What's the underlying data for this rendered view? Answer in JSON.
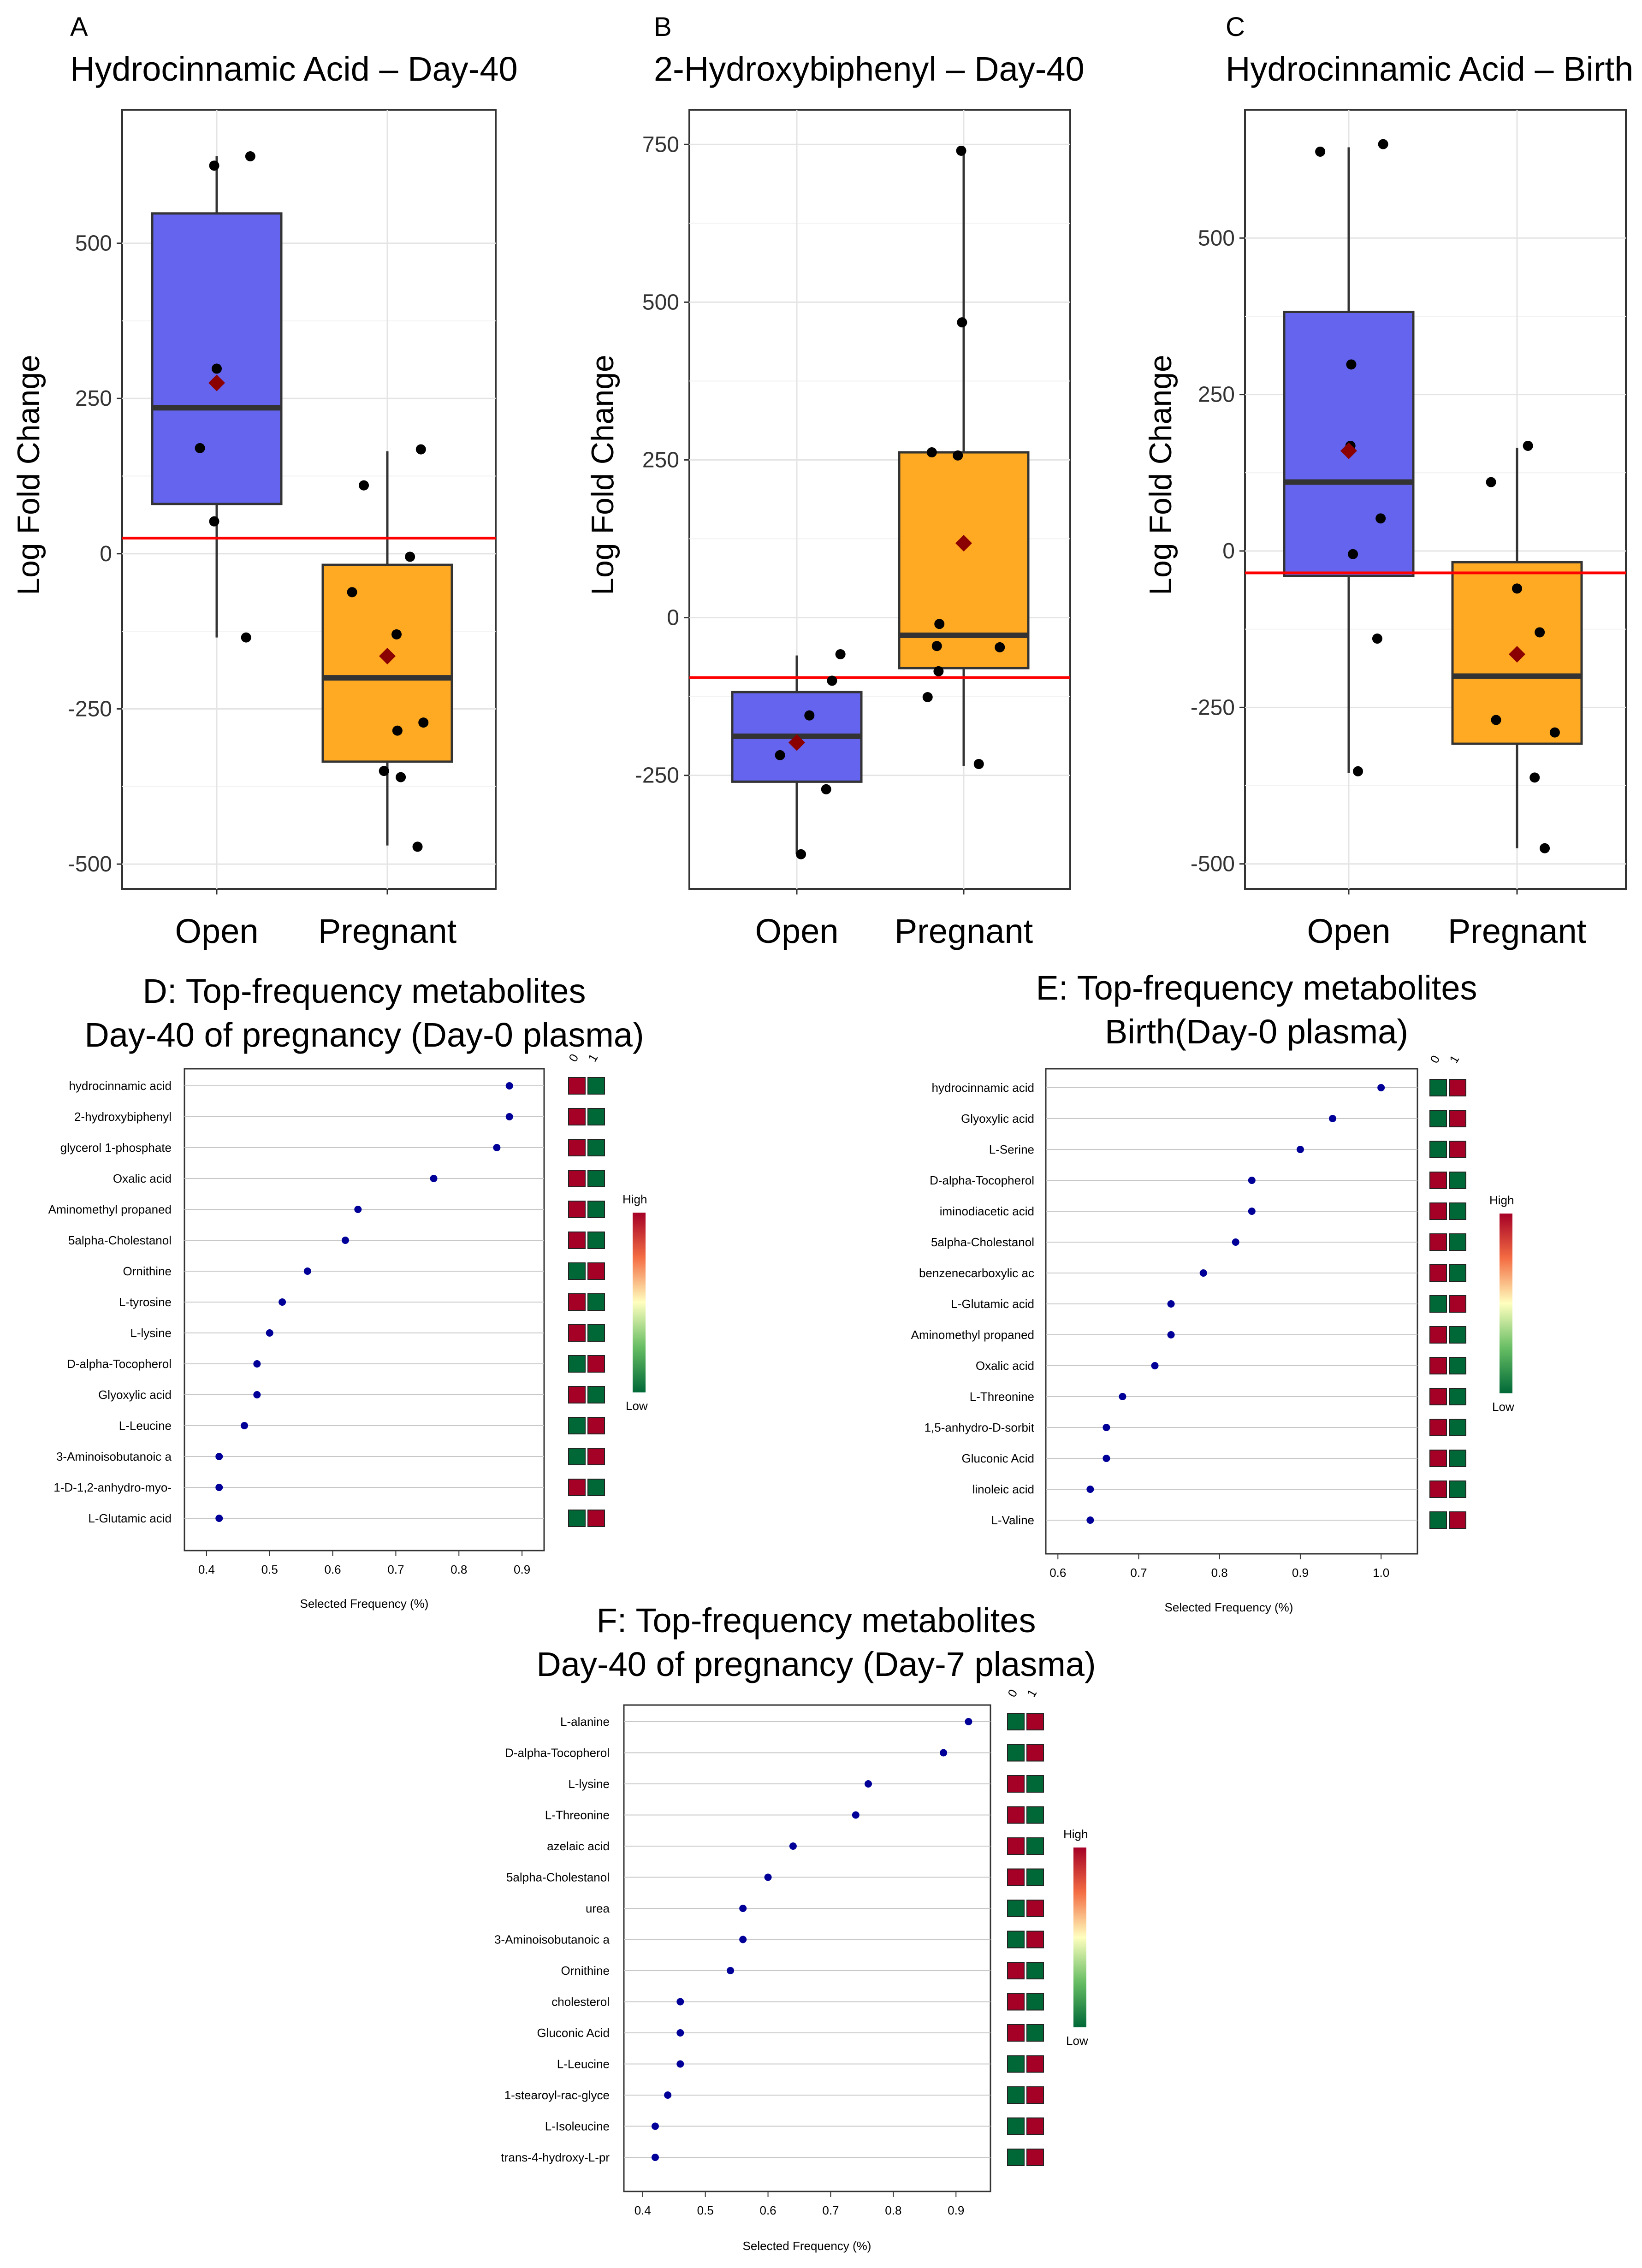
{
  "colors": {
    "open": "#6464EE",
    "pregnant": "#FFAA22",
    "mean": "#8B0000",
    "refline": "#FF0000",
    "dot": "#000099",
    "heat_high": "#A50026",
    "heat_low": "#006837"
  },
  "chart_data": [
    {
      "id": "A",
      "type": "box",
      "letter": "A",
      "title": "Hydrocinnamic Acid – Day-40",
      "ylabel": "Log Fold Change",
      "categories": [
        "Open",
        "Pregnant"
      ],
      "ylim": [
        -540,
        715
      ],
      "yticks": [
        -500,
        -250,
        0,
        250,
        500
      ],
      "ytick_labels": [
        "-500",
        "-250",
        "0",
        "250",
        "500"
      ],
      "refline": 25,
      "boxes": [
        {
          "q1": 80,
          "median": 235,
          "q3": 548,
          "lo": -135,
          "hi": 640,
          "mean": 275
        },
        {
          "q1": -335,
          "median": -200,
          "q3": -18,
          "lo": -470,
          "hi": 165,
          "mean": -165
        }
      ],
      "points": [
        [
          [
            0.97,
            625
          ],
          [
            1.4,
            640
          ],
          [
            0.8,
            170
          ],
          [
            1.0,
            298
          ],
          [
            0.97,
            52
          ],
          [
            1.35,
            -135
          ]
        ],
        [
          [
            0.72,
            110
          ],
          [
            0.58,
            -62
          ],
          [
            1.4,
            168
          ],
          [
            1.27,
            -5
          ],
          [
            1.11,
            -130
          ],
          [
            1.12,
            -285
          ],
          [
            1.43,
            -272
          ],
          [
            0.96,
            -350
          ],
          [
            1.16,
            -360
          ],
          [
            1.36,
            -472
          ]
        ]
      ]
    },
    {
      "id": "B",
      "type": "box",
      "letter": "B",
      "title": "2-Hydroxybiphenyl – Day-40",
      "ylabel": "Log Fold Change",
      "categories": [
        "Open",
        "Pregnant"
      ],
      "ylim": [
        -430,
        805
      ],
      "yticks": [
        -250,
        0,
        250,
        500,
        750
      ],
      "ytick_labels": [
        "-250",
        "0",
        "250",
        "500",
        "750"
      ],
      "refline": -95,
      "boxes": [
        {
          "q1": -260,
          "median": -188,
          "q3": -118,
          "lo": -375,
          "hi": -60,
          "mean": -198
        },
        {
          "q1": -80,
          "median": -28,
          "q3": 262,
          "lo": -235,
          "hi": 742,
          "mean": 118
        }
      ],
      "points": [
        [
          [
            0.8,
            -218
          ],
          [
            1.15,
            -155
          ],
          [
            1.35,
            -272
          ],
          [
            1.42,
            -100
          ],
          [
            1.52,
            -58
          ],
          [
            1.05,
            -375
          ]
        ],
        [
          [
            0.97,
            740
          ],
          [
            0.98,
            468
          ],
          [
            0.62,
            262
          ],
          [
            0.93,
            257
          ],
          [
            0.71,
            -10
          ],
          [
            0.68,
            -45
          ],
          [
            0.7,
            -85
          ],
          [
            0.57,
            -126
          ],
          [
            1.43,
            -47
          ],
          [
            1.18,
            -232
          ]
        ]
      ]
    },
    {
      "id": "C",
      "type": "box",
      "letter": "C",
      "title": "Hydrocinnamic Acid – Birth",
      "ylabel": "Log Fold Change",
      "categories": [
        "Open",
        "Pregnant"
      ],
      "ylim": [
        -540,
        705
      ],
      "yticks": [
        -500,
        -250,
        0,
        250,
        500
      ],
      "ytick_labels": [
        "-500",
        "-250",
        "0",
        "250",
        "500"
      ],
      "refline": -35,
      "boxes": [
        {
          "q1": -40,
          "median": 110,
          "q3": 382,
          "lo": -355,
          "hi": 645,
          "mean": 160
        },
        {
          "q1": -308,
          "median": -200,
          "q3": -18,
          "lo": -475,
          "hi": 165,
          "mean": -165
        }
      ],
      "points": [
        [
          [
            0.66,
            638
          ],
          [
            1.41,
            650
          ],
          [
            1.03,
            298
          ],
          [
            1.02,
            168
          ],
          [
            1.38,
            52
          ],
          [
            1.05,
            -5
          ],
          [
            1.34,
            -140
          ],
          [
            1.11,
            -352
          ]
        ],
        [
          [
            0.69,
            110
          ],
          [
            1.13,
            168
          ],
          [
            1.0,
            -60
          ],
          [
            1.27,
            -130
          ],
          [
            0.75,
            -270
          ],
          [
            1.45,
            -290
          ],
          [
            1.21,
            -362
          ],
          [
            1.33,
            -475
          ]
        ]
      ]
    },
    {
      "id": "D",
      "type": "dot-importance",
      "title_lines": [
        "D: Top-frequency metabolites",
        "Day-40 of pregnancy (Day-0 plasma)"
      ],
      "xlabel": "Selected Frequency (%)",
      "xlim": [
        0.365,
        0.935
      ],
      "xticks": [
        0.4,
        0.5,
        0.6,
        0.7,
        0.8,
        0.9
      ],
      "xtick_labels": [
        "0.4",
        "0.5",
        "0.6",
        "0.7",
        "0.8",
        "0.9"
      ],
      "heat_columns": [
        "0",
        "1"
      ],
      "legend_high": "High",
      "legend_low": "Low",
      "rows": [
        {
          "label": "hydrocinnamic acid",
          "value": 0.88,
          "heat": [
            1,
            0
          ]
        },
        {
          "label": "2-hydroxybiphenyl",
          "value": 0.88,
          "heat": [
            1,
            0
          ]
        },
        {
          "label": "glycerol 1-phosphate",
          "value": 0.86,
          "heat": [
            1,
            0
          ]
        },
        {
          "label": "Oxalic acid",
          "value": 0.76,
          "heat": [
            1,
            0
          ]
        },
        {
          "label": "Aminomethyl propaned",
          "value": 0.64,
          "heat": [
            1,
            0
          ]
        },
        {
          "label": "5alpha-Cholestanol",
          "value": 0.62,
          "heat": [
            1,
            0
          ]
        },
        {
          "label": "Ornithine",
          "value": 0.56,
          "heat": [
            0,
            1
          ]
        },
        {
          "label": "L-tyrosine",
          "value": 0.52,
          "heat": [
            1,
            0
          ]
        },
        {
          "label": "L-lysine",
          "value": 0.5,
          "heat": [
            1,
            0
          ]
        },
        {
          "label": "D-alpha-Tocopherol",
          "value": 0.48,
          "heat": [
            0,
            1
          ]
        },
        {
          "label": "Glyoxylic acid",
          "value": 0.48,
          "heat": [
            1,
            0
          ]
        },
        {
          "label": "L-Leucine",
          "value": 0.46,
          "heat": [
            0,
            1
          ]
        },
        {
          "label": "3-Aminoisobutanoic a",
          "value": 0.42,
          "heat": [
            0,
            1
          ]
        },
        {
          "label": "1-D-1,2-anhydro-myo-",
          "value": 0.42,
          "heat": [
            1,
            0
          ]
        },
        {
          "label": "L-Glutamic acid",
          "value": 0.42,
          "heat": [
            0,
            1
          ]
        }
      ]
    },
    {
      "id": "E",
      "type": "dot-importance",
      "title_lines": [
        "E: Top-frequency metabolites",
        "Birth(Day-0 plasma)"
      ],
      "xlabel": "Selected Frequency (%)",
      "xlim": [
        0.585,
        1.045
      ],
      "xticks": [
        0.6,
        0.7,
        0.8,
        0.9,
        1.0
      ],
      "xtick_labels": [
        "0.6",
        "0.7",
        "0.8",
        "0.9",
        "1.0"
      ],
      "heat_columns": [
        "0",
        "1"
      ],
      "legend_high": "High",
      "legend_low": "Low",
      "rows": [
        {
          "label": "hydrocinnamic acid",
          "value": 1.0,
          "heat": [
            0,
            1
          ]
        },
        {
          "label": "Glyoxylic acid",
          "value": 0.94,
          "heat": [
            0,
            1
          ]
        },
        {
          "label": "L-Serine",
          "value": 0.9,
          "heat": [
            0,
            1
          ]
        },
        {
          "label": "D-alpha-Tocopherol",
          "value": 0.84,
          "heat": [
            1,
            0
          ]
        },
        {
          "label": "iminodiacetic acid",
          "value": 0.84,
          "heat": [
            1,
            0
          ]
        },
        {
          "label": "5alpha-Cholestanol",
          "value": 0.82,
          "heat": [
            1,
            0
          ]
        },
        {
          "label": "benzenecarboxylic ac",
          "value": 0.78,
          "heat": [
            1,
            0
          ]
        },
        {
          "label": "L-Glutamic acid",
          "value": 0.74,
          "heat": [
            0,
            1
          ]
        },
        {
          "label": "Aminomethyl propaned",
          "value": 0.74,
          "heat": [
            1,
            0
          ]
        },
        {
          "label": "Oxalic acid",
          "value": 0.72,
          "heat": [
            1,
            0
          ]
        },
        {
          "label": "L-Threonine",
          "value": 0.68,
          "heat": [
            1,
            0
          ]
        },
        {
          "label": "1,5-anhydro-D-sorbit",
          "value": 0.66,
          "heat": [
            1,
            0
          ]
        },
        {
          "label": "Gluconic Acid",
          "value": 0.66,
          "heat": [
            1,
            0
          ]
        },
        {
          "label": "linoleic acid",
          "value": 0.64,
          "heat": [
            1,
            0
          ]
        },
        {
          "label": "L-Valine",
          "value": 0.64,
          "heat": [
            0,
            1
          ]
        }
      ]
    },
    {
      "id": "F",
      "type": "dot-importance",
      "title_lines": [
        "F: Top-frequency metabolites",
        "Day-40 of pregnancy (Day-7 plasma)"
      ],
      "xlabel": "Selected Frequency (%)",
      "xlim": [
        0.37,
        0.955
      ],
      "xticks": [
        0.4,
        0.5,
        0.6,
        0.7,
        0.8,
        0.9
      ],
      "xtick_labels": [
        "0.4",
        "0.5",
        "0.6",
        "0.7",
        "0.8",
        "0.9"
      ],
      "heat_columns": [
        "0",
        "1"
      ],
      "legend_high": "High",
      "legend_low": "Low",
      "rows": [
        {
          "label": "L-alanine",
          "value": 0.92,
          "heat": [
            0,
            1
          ]
        },
        {
          "label": "D-alpha-Tocopherol",
          "value": 0.88,
          "heat": [
            0,
            1
          ]
        },
        {
          "label": "L-lysine",
          "value": 0.76,
          "heat": [
            1,
            0
          ]
        },
        {
          "label": "L-Threonine",
          "value": 0.74,
          "heat": [
            1,
            0
          ]
        },
        {
          "label": "azelaic acid",
          "value": 0.64,
          "heat": [
            1,
            0
          ]
        },
        {
          "label": "5alpha-Cholestanol",
          "value": 0.6,
          "heat": [
            1,
            0
          ]
        },
        {
          "label": "urea",
          "value": 0.56,
          "heat": [
            0,
            1
          ]
        },
        {
          "label": "3-Aminoisobutanoic a",
          "value": 0.56,
          "heat": [
            0,
            1
          ]
        },
        {
          "label": "Ornithine",
          "value": 0.54,
          "heat": [
            1,
            0
          ]
        },
        {
          "label": "cholesterol",
          "value": 0.46,
          "heat": [
            1,
            0
          ]
        },
        {
          "label": "Gluconic Acid",
          "value": 0.46,
          "heat": [
            1,
            0
          ]
        },
        {
          "label": "L-Leucine",
          "value": 0.46,
          "heat": [
            0,
            1
          ]
        },
        {
          "label": "1-stearoyl-rac-glyce",
          "value": 0.44,
          "heat": [
            0,
            1
          ]
        },
        {
          "label": "L-Isoleucine",
          "value": 0.42,
          "heat": [
            0,
            1
          ]
        },
        {
          "label": "trans-4-hydroxy-L-pr",
          "value": 0.42,
          "heat": [
            0,
            1
          ]
        }
      ]
    }
  ]
}
